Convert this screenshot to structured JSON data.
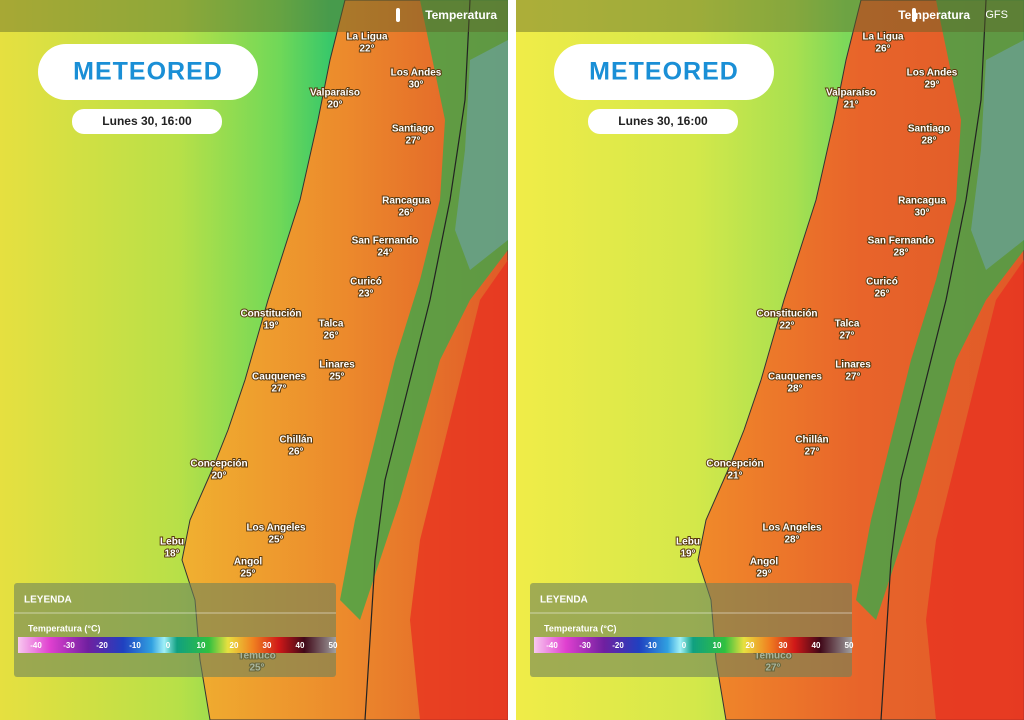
{
  "panels": [
    {
      "header": {
        "variable": "Temperatura"
      },
      "logo": "METEORED",
      "date": "Lunes 30, 16:00",
      "cities": [
        {
          "name": "La Ligua",
          "temp": "22°"
        },
        {
          "name": "Los Andes",
          "temp": "30°"
        },
        {
          "name": "Valparaíso",
          "temp": "20°"
        },
        {
          "name": "Santiago",
          "temp": "27°"
        },
        {
          "name": "Rancagua",
          "temp": "26°"
        },
        {
          "name": "San Fernando",
          "temp": "24°"
        },
        {
          "name": "Curicó",
          "temp": "23°"
        },
        {
          "name": "Constitución",
          "temp": "19°"
        },
        {
          "name": "Talca",
          "temp": "26°"
        },
        {
          "name": "Linares",
          "temp": "25°"
        },
        {
          "name": "Cauquenes",
          "temp": "27°"
        },
        {
          "name": "Chillán",
          "temp": "26°"
        },
        {
          "name": "Concepción",
          "temp": "20°"
        },
        {
          "name": "Los Angeles",
          "temp": "25°"
        },
        {
          "name": "Lebu",
          "temp": "18°"
        },
        {
          "name": "Angol",
          "temp": "25°"
        },
        {
          "name": "Temuco",
          "temp": "25°"
        }
      ],
      "legend": {
        "title": "LEYENDA",
        "scale_title": "Temperatura (°C)",
        "ticks": [
          "-40",
          "-30",
          "-20",
          "-10",
          "0",
          "10",
          "20",
          "30",
          "40",
          "50"
        ]
      }
    },
    {
      "header": {
        "variable": "Temperatura",
        "model": "GFS"
      },
      "logo": "METEORED",
      "date": "Lunes 30, 16:00",
      "cities": [
        {
          "name": "La Ligua",
          "temp": "26°"
        },
        {
          "name": "Los Andes",
          "temp": "29°"
        },
        {
          "name": "Valparaíso",
          "temp": "21°"
        },
        {
          "name": "Santiago",
          "temp": "28°"
        },
        {
          "name": "Rancagua",
          "temp": "30°"
        },
        {
          "name": "San Fernando",
          "temp": "28°"
        },
        {
          "name": "Curicó",
          "temp": "26°"
        },
        {
          "name": "Constitución",
          "temp": "22°"
        },
        {
          "name": "Talca",
          "temp": "27°"
        },
        {
          "name": "Linares",
          "temp": "27°"
        },
        {
          "name": "Cauquenes",
          "temp": "28°"
        },
        {
          "name": "Chillán",
          "temp": "27°"
        },
        {
          "name": "Concepción",
          "temp": "21°"
        },
        {
          "name": "Los Angeles",
          "temp": "28°"
        },
        {
          "name": "Lebu",
          "temp": "19°"
        },
        {
          "name": "Angol",
          "temp": "29°"
        },
        {
          "name": "Temuco",
          "temp": "27°"
        }
      ],
      "legend": {
        "title": "LEYENDA",
        "scale_title": "Temperatura (°C)",
        "ticks": [
          "-40",
          "-30",
          "-20",
          "-10",
          "0",
          "10",
          "20",
          "30",
          "40",
          "50"
        ]
      }
    }
  ]
}
